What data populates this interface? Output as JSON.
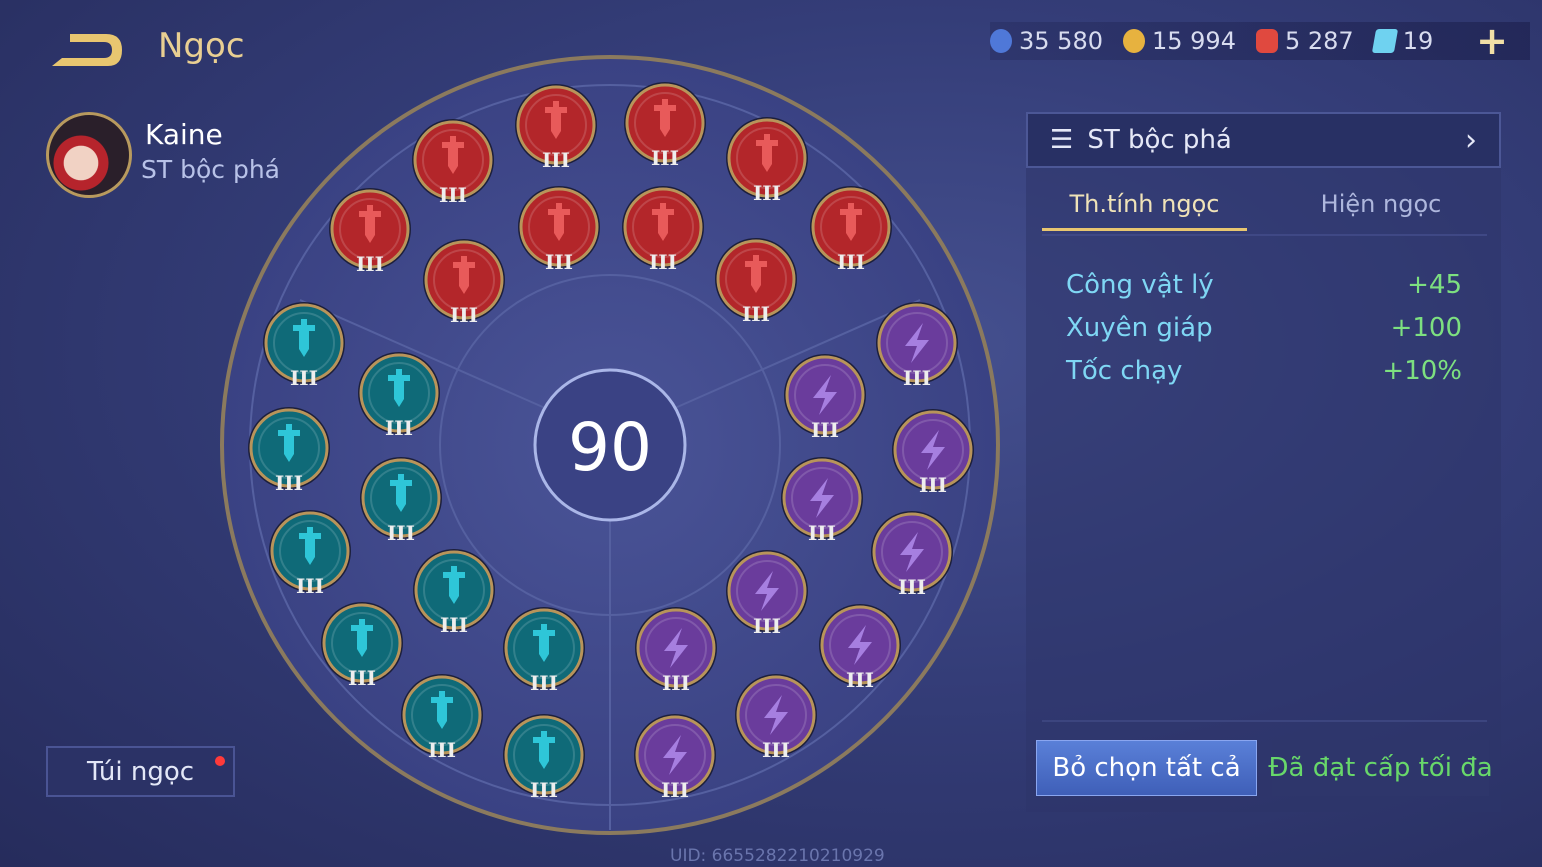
{
  "header": {
    "back_icon": "back-arrow-icon",
    "title": "Ngọc"
  },
  "hero": {
    "name": "Kaine",
    "rune_set": "ST bộc phá"
  },
  "currencies": [
    {
      "icon": "blue-coin-icon",
      "value": "35 580",
      "color": "#4f78d8"
    },
    {
      "icon": "gold-coin-icon",
      "value": "15 994",
      "color": "#e7b23f"
    },
    {
      "icon": "red-gem-icon",
      "value": "5 287",
      "color": "#e0493f"
    },
    {
      "icon": "blue-card-icon",
      "value": "19",
      "color": "#6fd2f0"
    }
  ],
  "add_label": "+",
  "center_level": "90",
  "runes": {
    "level_label": "III",
    "colors": {
      "red": "#b3262a",
      "blue": "#0f6a78",
      "purple": "#6a3c9c"
    },
    "red_count": 10,
    "blue_count": 10,
    "purple_count": 10
  },
  "bag_label": "Túi ngọc",
  "panel": {
    "set_selector": "ST bộc phá",
    "tabs": [
      {
        "label": "Th.tính ngọc",
        "active": true
      },
      {
        "label": "Hiện ngọc",
        "active": false
      }
    ],
    "stats": [
      {
        "name": "Công vật lý",
        "value": "+45"
      },
      {
        "name": "Xuyên giáp",
        "value": "+100"
      },
      {
        "name": "Tốc chạy",
        "value": "+10%"
      }
    ],
    "clear_button": "Bỏ chọn tất cả",
    "max_level": "Đã đạt cấp tối đa"
  },
  "uid": "UID: 6655282210210929"
}
